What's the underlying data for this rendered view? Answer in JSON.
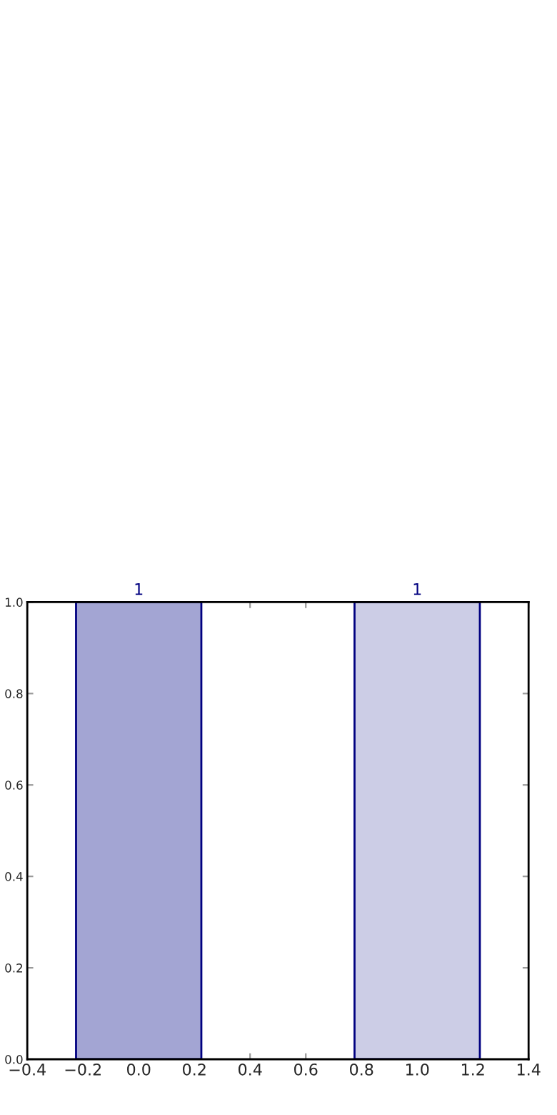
{
  "chart_data": {
    "type": "bar",
    "x": [
      0,
      1
    ],
    "series": [
      {
        "colors": [
          "#a3a5d3",
          "#cccde6"
        ],
        "values": [
          1,
          1
        ]
      }
    ],
    "data_labels": true,
    "xlim": [
      -0.4,
      1.4
    ],
    "xticks": [
      {
        "value": -0.4,
        "label": "−0.4"
      },
      {
        "value": -0.2,
        "label": "−0.2"
      },
      {
        "value": 0,
        "label": "0.0"
      },
      0.2,
      0.4,
      0.6,
      0.8,
      {
        "value": 1,
        "label": "1.0"
      },
      1.2,
      1.4
    ],
    "ylim": [
      0,
      1
    ],
    "yticks": [
      {
        "value": 0,
        "label": "0.0"
      },
      0.2,
      0.4,
      0.6,
      0.8,
      {
        "value": 1,
        "label": "1.0"
      }
    ],
    "grid": false,
    "legend": false
  }
}
